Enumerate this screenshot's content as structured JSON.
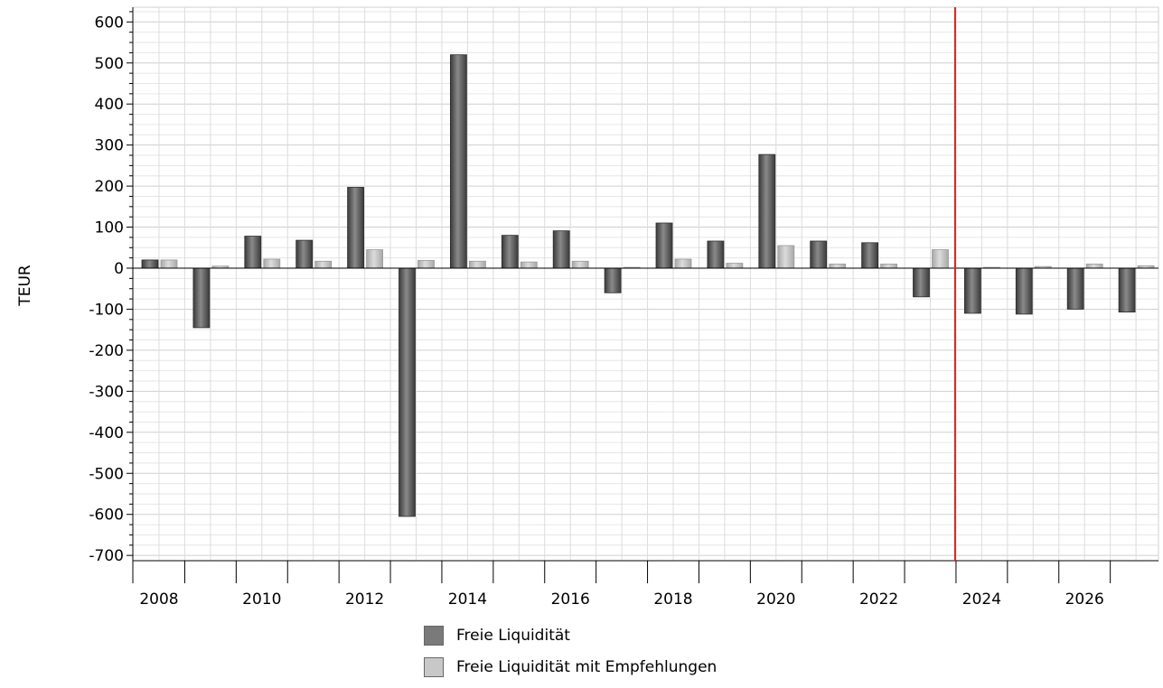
{
  "chart_data": {
    "type": "bar",
    "title": "",
    "xlabel": "",
    "ylabel": "TEUR",
    "ylim": [
      -720,
      625
    ],
    "yticks": [
      600,
      500,
      400,
      300,
      200,
      100,
      0,
      -100,
      -200,
      -300,
      -400,
      -500,
      -600,
      -700
    ],
    "categories": [
      2008,
      2009,
      2010,
      2011,
      2012,
      2013,
      2014,
      2015,
      2016,
      2017,
      2018,
      2019,
      2020,
      2021,
      2022,
      2023,
      2024,
      2025,
      2026,
      2027
    ],
    "x_tick_labels": [
      2008,
      2010,
      2012,
      2014,
      2016,
      2018,
      2020,
      2022,
      2024,
      2026
    ],
    "marker_line_x": 2023,
    "marker_line_color": "#e02020",
    "grid": true,
    "legend_position": "bottom",
    "series": [
      {
        "name": "Freie Liquidität",
        "color": "#707070",
        "values": [
          20,
          -145,
          78,
          68,
          197,
          -605,
          520,
          80,
          91,
          -60,
          110,
          66,
          277,
          66,
          62,
          -70,
          -110,
          -112,
          -100,
          -107
        ]
      },
      {
        "name": "Freie Liquidität mit Empfehlungen",
        "color": "#c4c4c4",
        "values": [
          20,
          5,
          22,
          17,
          45,
          19,
          17,
          15,
          17,
          2,
          22,
          12,
          55,
          10,
          10,
          45,
          2,
          4,
          10,
          6
        ]
      }
    ]
  }
}
